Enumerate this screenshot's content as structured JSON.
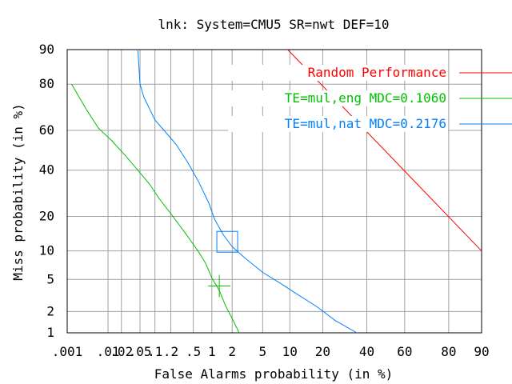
{
  "chart_data": {
    "type": "line",
    "title": "lnk: System=CMU5 SR=nwt DEF=10",
    "xlabel": "False Alarms probability (in %)",
    "ylabel": "Miss probability (in %)",
    "x_scale": "normal-deviate",
    "y_scale": "normal-deviate",
    "xlim": [
      0.001,
      90
    ],
    "ylim": [
      1,
      90
    ],
    "grid": true,
    "legend_position": "top-right",
    "x_ticks": [
      {
        "label": ".001",
        "value": 0.001
      },
      {
        "label": ".01",
        "value": 0.01
      },
      {
        "label": ".02",
        "value": 0.02
      },
      {
        "label": ".05",
        "value": 0.05
      },
      {
        "label": ".1",
        "value": 0.1
      },
      {
        "label": ".2",
        "value": 0.2
      },
      {
        "label": ".5",
        "value": 0.5
      },
      {
        "label": "1",
        "value": 1
      },
      {
        "label": "2",
        "value": 2
      },
      {
        "label": "5",
        "value": 5
      },
      {
        "label": "10",
        "value": 10
      },
      {
        "label": "20",
        "value": 20
      },
      {
        "label": "40",
        "value": 40
      },
      {
        "label": "60",
        "value": 60
      },
      {
        "label": "80",
        "value": 80
      },
      {
        "label": "90",
        "value": 90
      }
    ],
    "y_ticks": [
      {
        "label": "1",
        "value": 1
      },
      {
        "label": "2",
        "value": 2
      },
      {
        "label": "5",
        "value": 5
      },
      {
        "label": "10",
        "value": 10
      },
      {
        "label": "20",
        "value": 20
      },
      {
        "label": "40",
        "value": 40
      },
      {
        "label": "60",
        "value": 60
      },
      {
        "label": "80",
        "value": 80
      },
      {
        "label": "90",
        "value": 90
      }
    ],
    "series": [
      {
        "name": "Random Performance",
        "color": "#ff0000",
        "x": [
          9.5,
          90
        ],
        "y": [
          90,
          10
        ]
      },
      {
        "name": "TE=mul,eng MDC=0.1060",
        "color": "#00c000",
        "x": [
          0.0013,
          0.003,
          0.006,
          0.012,
          0.025,
          0.045,
          0.08,
          0.12,
          0.2,
          0.35,
          0.6,
          0.8,
          1.0,
          1.3,
          1.6,
          2.0,
          2.5
        ],
        "y": [
          80,
          70,
          61,
          55,
          47,
          40,
          33,
          27,
          21,
          15,
          10,
          7.5,
          5.2,
          3.7,
          2.4,
          1.6,
          1.0
        ],
        "marker": {
          "x": 1.3,
          "y": 4.2,
          "shape": "plus"
        }
      },
      {
        "name": "TE=mul,nat MDC=0.2176",
        "color": "#0080ff",
        "x": [
          0.045,
          0.05,
          0.06,
          0.1,
          0.15,
          0.25,
          0.4,
          0.6,
          0.9,
          1.1,
          1.5,
          2.0,
          3.0,
          5.0,
          8.0,
          12.0,
          18.0,
          25.0,
          35.0
        ],
        "y": [
          90,
          80,
          75,
          65,
          60,
          53,
          44,
          35,
          25,
          19,
          14,
          11,
          8.5,
          6.0,
          4.5,
          3.3,
          2.3,
          1.5,
          1.0
        ],
        "marker": {
          "x": 1.7,
          "y": 12.2,
          "shape": "square"
        }
      }
    ]
  }
}
